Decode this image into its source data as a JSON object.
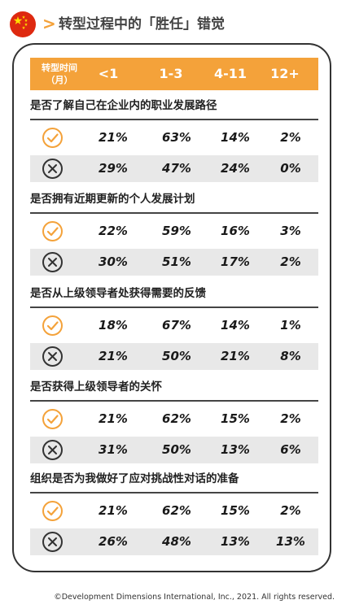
{
  "header": {
    "title": "转型过程中的「胜任」错觉",
    "chevron": ">"
  },
  "table": {
    "first_header": [
      "转型时间",
      "（月）"
    ],
    "columns": [
      "<1",
      "1-3",
      "4-11",
      "12+"
    ]
  },
  "questions": [
    {
      "title": "是否了解自己在企业内的职业发展路径",
      "yes": [
        "21%",
        "63%",
        "14%",
        "2%"
      ],
      "no": [
        "29%",
        "47%",
        "24%",
        "0%"
      ]
    },
    {
      "title": "是否拥有近期更新的个人发展计划",
      "yes": [
        "22%",
        "59%",
        "16%",
        "3%"
      ],
      "no": [
        "30%",
        "51%",
        "17%",
        "2%"
      ]
    },
    {
      "title": "是否从上级领导者处获得需要的反馈",
      "yes": [
        "18%",
        "67%",
        "14%",
        "1%"
      ],
      "no": [
        "21%",
        "50%",
        "21%",
        "8%"
      ]
    },
    {
      "title": "是否获得上级领导者的关怀",
      "yes": [
        "21%",
        "62%",
        "15%",
        "2%"
      ],
      "no": [
        "31%",
        "50%",
        "13%",
        "6%"
      ]
    },
    {
      "title": "组织是否为我做好了应对挑战性对话的准备",
      "yes": [
        "21%",
        "62%",
        "15%",
        "2%"
      ],
      "no": [
        "26%",
        "48%",
        "13%",
        "13%"
      ]
    }
  ],
  "footer": "©Development Dimensions International, Inc., 2021. All rights reserved.",
  "colors": {
    "accent": "#f4a23a",
    "flag_red": "#de2910",
    "flag_star": "#ffde00",
    "row_gray": "#e8e8e8"
  },
  "icons": {
    "flag": "china-flag-icon",
    "yes": "check-circle-icon",
    "no": "x-circle-icon"
  }
}
